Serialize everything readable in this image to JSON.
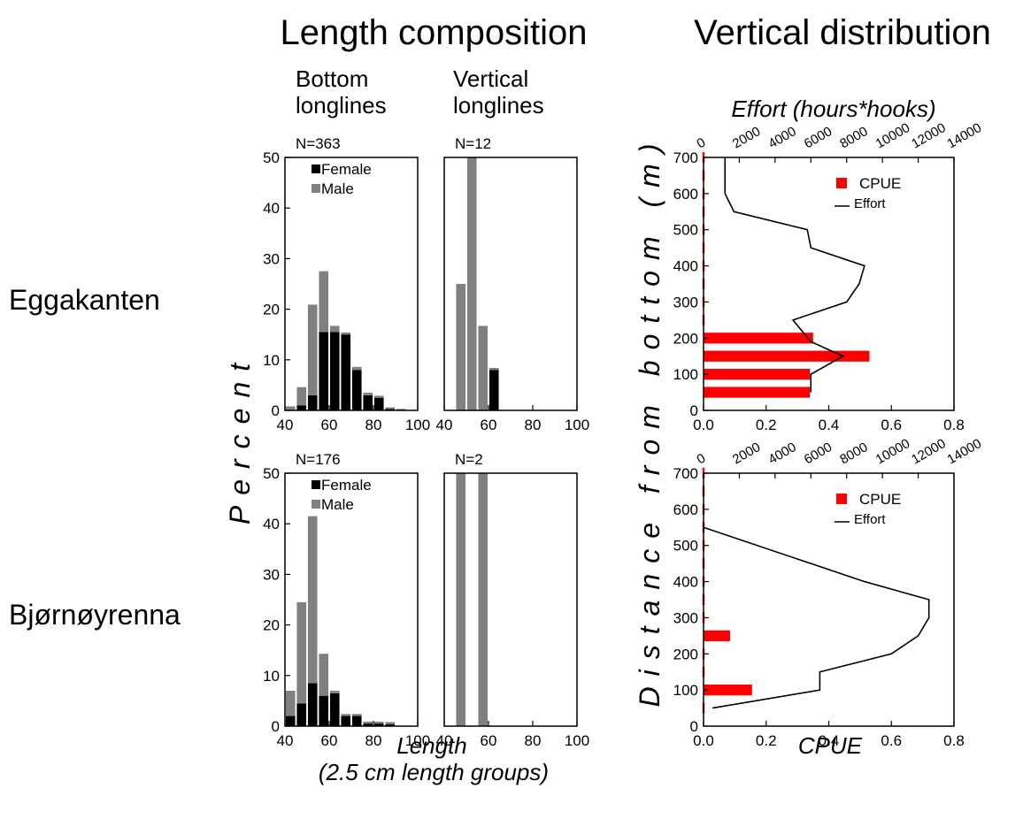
{
  "titles": {
    "length_composition": "Length composition",
    "vertical_distribution": "Vertical distribution",
    "bottom_longlines": [
      "Bottom",
      "longlines"
    ],
    "vertical_longlines": [
      "Vertical",
      "longlines"
    ]
  },
  "row_labels": [
    "Eggakanten",
    "Bjørnøyrenna"
  ],
  "axis_labels": {
    "percent": "Percent",
    "length": "Length",
    "length_sub": "(2.5 cm length groups)",
    "distance": "Distance from bottom (m)",
    "cpue": "CPUE",
    "effort": "Effort (hours*hooks)"
  },
  "colors": {
    "female": "#000000",
    "male": "#808080",
    "cpue": "#ff0000",
    "effort": "#000000"
  },
  "chart_data": [
    {
      "type": "bar",
      "id": "egg-bottom",
      "stacked": true,
      "annotation": "N=363",
      "xlim": [
        40,
        100
      ],
      "xticks": [
        40,
        60,
        80,
        100
      ],
      "ylim": [
        0,
        50
      ],
      "yticks": [
        0,
        10,
        20,
        30,
        40,
        50
      ],
      "x": [
        42.5,
        47.5,
        52.5,
        57.5,
        62.5,
        67.5,
        72.5,
        77.5,
        82.5,
        87.5,
        92.5
      ],
      "series": [
        {
          "name": "Female",
          "color": "#000000",
          "values": [
            0,
            1.0,
            3.0,
            15.5,
            15.5,
            15.0,
            8.0,
            3.0,
            2.5,
            0.3,
            0
          ]
        },
        {
          "name": "Male",
          "color": "#808080",
          "values": [
            0.8,
            3.6,
            17.9,
            12.0,
            1.2,
            0.4,
            0.6,
            0.5,
            0.4,
            0.3,
            0.3
          ]
        }
      ],
      "legend": {
        "position": "top-left",
        "entries": [
          "Female",
          "Male"
        ]
      }
    },
    {
      "type": "bar",
      "id": "egg-vertical",
      "stacked": true,
      "annotation": "N=12",
      "xlim": [
        40,
        100
      ],
      "xticks": [
        40,
        60,
        80,
        100
      ],
      "ylim": [
        0,
        50
      ],
      "x": [
        47.5,
        52.5,
        57.5,
        62.5
      ],
      "series": [
        {
          "name": "Female",
          "color": "#000000",
          "values": [
            0,
            0,
            0,
            8.0
          ]
        },
        {
          "name": "Male",
          "color": "#808080",
          "values": [
            25.0,
            50.0,
            16.7,
            0.4
          ]
        }
      ]
    },
    {
      "type": "bar",
      "id": "bjo-bottom",
      "stacked": true,
      "annotation": "N=176",
      "xlim": [
        40,
        100
      ],
      "xticks": [
        40,
        60,
        80,
        100
      ],
      "ylim": [
        0,
        50
      ],
      "yticks": [
        0,
        10,
        20,
        30,
        40,
        50
      ],
      "x": [
        42.5,
        47.5,
        52.5,
        57.5,
        62.5,
        67.5,
        72.5,
        77.5,
        82.5,
        87.5
      ],
      "series": [
        {
          "name": "Female",
          "color": "#000000",
          "values": [
            2.0,
            4.5,
            8.5,
            6.0,
            6.5,
            2.0,
            2.0,
            0.5,
            0.5,
            0.4
          ]
        },
        {
          "name": "Male",
          "color": "#808080",
          "values": [
            5.0,
            20.0,
            33.0,
            8.3,
            0.5,
            0.4,
            0.4,
            0.4,
            0.4,
            0.4
          ]
        }
      ],
      "legend": {
        "position": "top-left",
        "entries": [
          "Female",
          "Male"
        ]
      }
    },
    {
      "type": "bar",
      "id": "bjo-vertical",
      "stacked": true,
      "annotation": "N=2",
      "xlim": [
        40,
        100
      ],
      "xticks": [
        40,
        60,
        80,
        100
      ],
      "ylim": [
        0,
        50
      ],
      "x": [
        47.5,
        57.5
      ],
      "series": [
        {
          "name": "Female",
          "color": "#000000",
          "values": [
            0,
            0
          ]
        },
        {
          "name": "Male",
          "color": "#808080",
          "values": [
            50.0,
            50.0
          ]
        }
      ]
    },
    {
      "type": "bar",
      "id": "egg-vertdist",
      "orientation": "horizontal",
      "xlim": [
        0,
        0.8
      ],
      "xticks": [
        0.0,
        0.2,
        0.4,
        0.6,
        0.8
      ],
      "ylim": [
        0,
        700
      ],
      "yticks": [
        0,
        100,
        200,
        300,
        400,
        500,
        600,
        700
      ],
      "top_axis": {
        "lim": [
          0,
          14000
        ],
        "ticks": [
          0,
          2000,
          4000,
          6000,
          8000,
          10000,
          12000,
          14000
        ]
      },
      "cpue": {
        "name": "CPUE",
        "depth": [
          50,
          100,
          150,
          200,
          250,
          300,
          350,
          400,
          450,
          500,
          550,
          600,
          650,
          700
        ],
        "values": [
          0.34,
          0.34,
          0.53,
          0.35,
          0,
          0,
          0,
          0,
          0,
          0,
          0,
          0,
          0,
          0
        ]
      },
      "effort": {
        "name": "Effort",
        "points": [
          [
            6000,
            50
          ],
          [
            6000,
            100
          ],
          [
            7800,
            150
          ],
          [
            6000,
            190
          ],
          [
            5000,
            250
          ],
          [
            8000,
            300
          ],
          [
            8700,
            350
          ],
          [
            9000,
            400
          ],
          [
            6000,
            450
          ],
          [
            5800,
            500
          ],
          [
            1700,
            550
          ],
          [
            1200,
            600
          ],
          [
            1200,
            650
          ],
          [
            1200,
            700
          ]
        ]
      },
      "legend": {
        "position": "top-right",
        "entries": [
          "CPUE",
          "Effort"
        ]
      }
    },
    {
      "type": "bar",
      "id": "bjo-vertdist",
      "orientation": "horizontal",
      "xlim": [
        0,
        0.8
      ],
      "xticks": [
        0.0,
        0.2,
        0.4,
        0.6,
        0.8
      ],
      "ylim": [
        0,
        700
      ],
      "yticks": [
        0,
        100,
        200,
        300,
        400,
        500,
        600,
        700
      ],
      "top_axis": {
        "lim": [
          0,
          14000
        ],
        "ticks": [
          0,
          2000,
          4000,
          6000,
          8000,
          10000,
          12000,
          14000
        ]
      },
      "cpue": {
        "name": "CPUE",
        "depth": [
          50,
          100,
          150,
          200,
          250,
          300,
          350,
          400,
          450,
          500,
          550,
          600,
          650,
          700
        ],
        "values": [
          0,
          0.155,
          0,
          0,
          0.085,
          0,
          0,
          0,
          0,
          0,
          0,
          0,
          0,
          0
        ]
      },
      "effort": {
        "name": "Effort",
        "points": [
          [
            500,
            50
          ],
          [
            6500,
            100
          ],
          [
            6500,
            150
          ],
          [
            10500,
            200
          ],
          [
            12000,
            250
          ],
          [
            12600,
            300
          ],
          [
            12600,
            350
          ],
          [
            9000,
            400
          ],
          [
            6000,
            450
          ],
          [
            0,
            550
          ]
        ]
      },
      "legend": {
        "position": "top-right",
        "entries": [
          "CPUE",
          "Effort"
        ]
      }
    }
  ]
}
